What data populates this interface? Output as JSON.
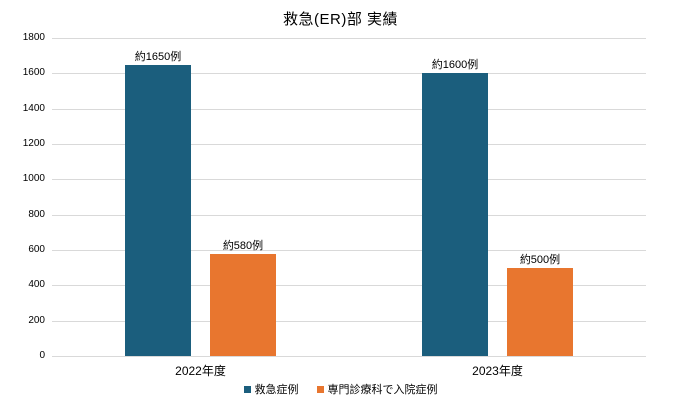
{
  "chart_data": {
    "type": "bar",
    "title": "救急(ER)部 実績",
    "categories": [
      "2022年度",
      "2023年度"
    ],
    "series": [
      {
        "name": "救急症例",
        "color": "#1b5e7d",
        "values": [
          1650,
          1600
        ],
        "data_labels": [
          "約1650例",
          "約1600例"
        ]
      },
      {
        "name": "専門診療科で入院症例",
        "color": "#e8762f",
        "values": [
          580,
          500
        ],
        "data_labels": [
          "約580例",
          "約500例"
        ]
      }
    ],
    "ylim": [
      0,
      1800
    ],
    "ytick_step": 200,
    "ytick_labels": [
      "0",
      "200",
      "400",
      "600",
      "800",
      "1000",
      "1200",
      "1400",
      "1600",
      "1800"
    ],
    "grid": true,
    "legend_position": "bottom",
    "gridline_color": "#d9d9d9",
    "background_color": "#ffffff",
    "text_color": "#000000"
  }
}
